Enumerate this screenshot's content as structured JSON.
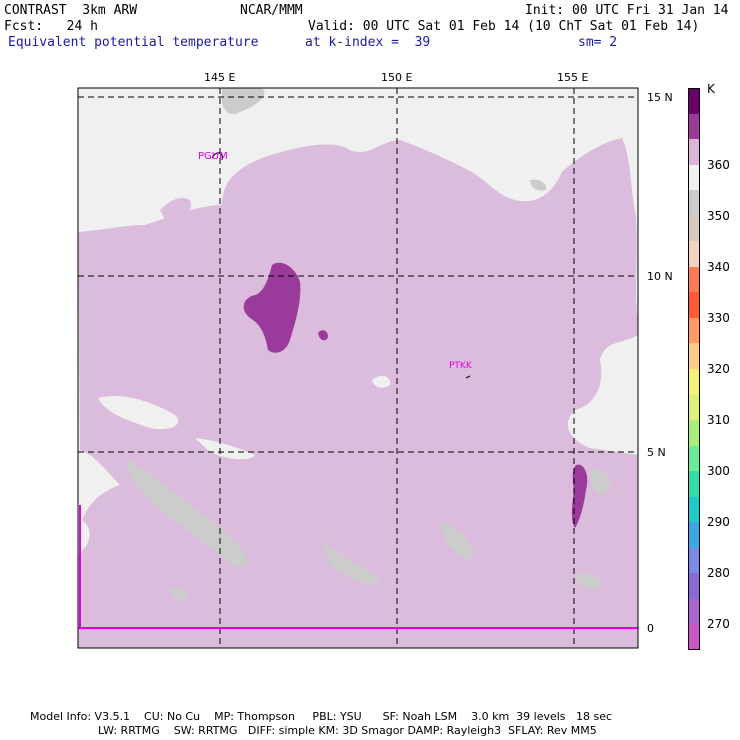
{
  "header": {
    "model": "CONTRAST  3km ARW",
    "center": "NCAR/MMM",
    "init": "Init: 00 UTC Fri 31 Jan 14",
    "fcst": "Fcst:   24 h",
    "valid": "Valid: 00 UTC Sat 01 Feb 14 (10 ChT Sat 01 Feb 14)",
    "field": "Equivalent potential temperature",
    "level": "at k-index =  39",
    "smooth": "sm= 2"
  },
  "map": {
    "lon_labels": [
      "145 E",
      "150 E",
      "155 E"
    ],
    "lat_labels": [
      "15 N",
      "10 N",
      "5 N",
      "0"
    ],
    "stations": [
      {
        "id": "PGUM",
        "lon": 144.8,
        "lat": 13.5
      },
      {
        "id": "PTKK",
        "lon": 151.8,
        "lat": 7.5
      }
    ]
  },
  "colorbar": {
    "unit": "K",
    "labels": [
      "360",
      "350",
      "340",
      "330",
      "320",
      "310",
      "300",
      "290",
      "280",
      "270"
    ],
    "colors": [
      "#6b006b",
      "#9a3a9a",
      "#dcb4dc",
      "#f0f0f0",
      "#cccccc",
      "#d8c8c0",
      "#f4d2c0",
      "#ff7a55",
      "#ff5a3a",
      "#ff9a66",
      "#ffcc88",
      "#f4f07a",
      "#dcf07a",
      "#a8ee78",
      "#66ee99",
      "#33ddaa",
      "#22c8cc",
      "#3aa8e8",
      "#7a8ae8",
      "#8a6ad8",
      "#aa66cc",
      "#cc55cc"
    ]
  },
  "footer": {
    "line1": "Model Info: V3.5.1    CU: No Cu    MP: Thompson     PBL: YSU      SF: Noah LSM    3.0 km  39 levels   18 sec",
    "line2": "LW: RRTMG    SW: RRTMG   DIFF: simple KM: 3D Smagor DAMP: Rayleigh3  SFLAY: Rev MM5"
  }
}
